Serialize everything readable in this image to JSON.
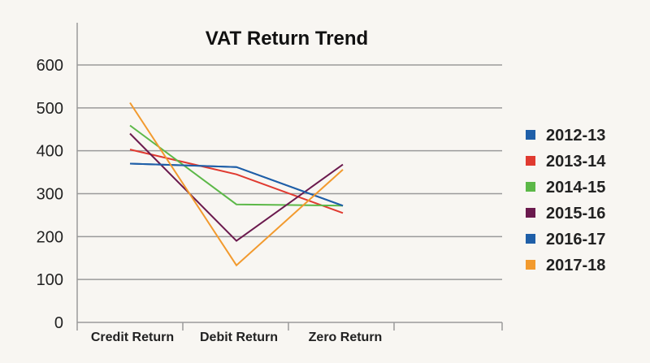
{
  "chart_data": {
    "type": "line",
    "title": "VAT Return Trend",
    "xlabel": "",
    "ylabel": "",
    "categories": [
      "Credit Return",
      "Debit Return",
      "Zero Return"
    ],
    "ylim": [
      0,
      600
    ],
    "yticks": [
      "0",
      "100",
      "200",
      "300",
      "400",
      "500",
      "600"
    ],
    "grid": true,
    "legend_position": "right",
    "series": [
      {
        "name": "2012-13",
        "values": [
          370,
          362,
          272
        ],
        "color": "#1f5fa8"
      },
      {
        "name": "2013-14",
        "values": [
          403,
          345,
          255
        ],
        "color": "#e03a30"
      },
      {
        "name": "2014-15",
        "values": [
          459,
          275,
          272
        ],
        "color": "#5cb848"
      },
      {
        "name": "2015-16",
        "values": [
          440,
          190,
          368
        ],
        "color": "#6b1a4e"
      },
      {
        "name": "2016-17",
        "values": [
          370,
          362,
          272
        ],
        "color": "#1f5fa8"
      },
      {
        "name": "2017-18",
        "values": [
          512,
          133,
          356
        ],
        "color": "#f29a2e"
      }
    ]
  }
}
